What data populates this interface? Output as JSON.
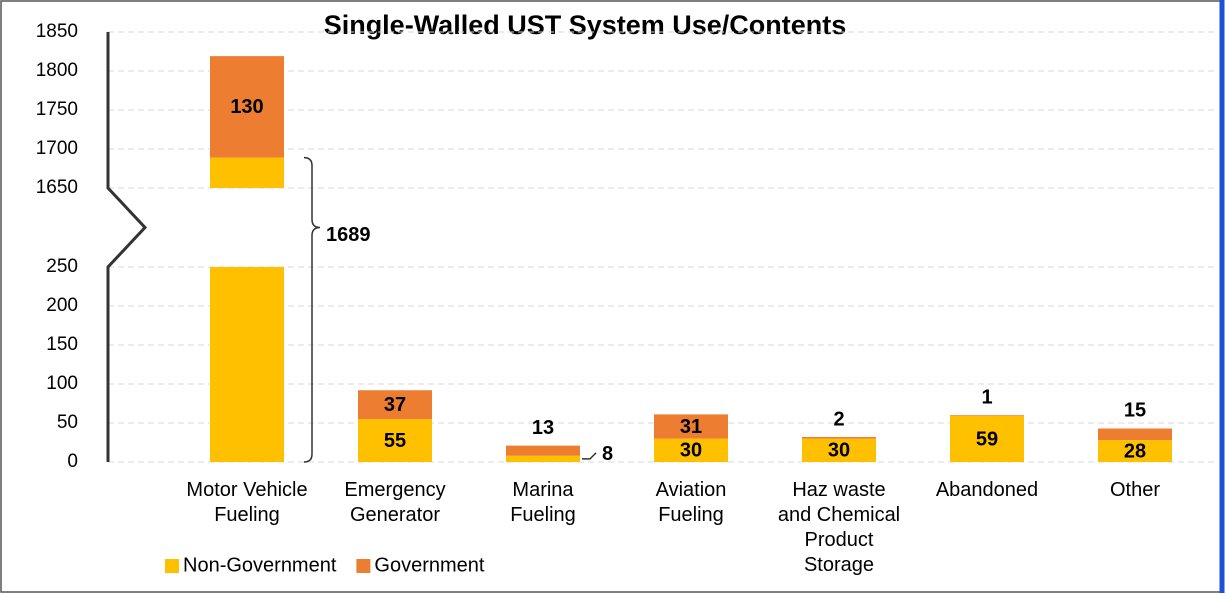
{
  "chart_data": {
    "type": "stacked_bar_broken_axis",
    "title": "Single-Walled UST System Use/Contents",
    "categories": [
      "Motor Vehicle\nFueling",
      "Emergency\nGenerator",
      "Marina\nFueling",
      "Aviation\nFueling",
      "Haz waste\nand Chemical\nProduct\nStorage",
      "Abandoned",
      "Other"
    ],
    "series": [
      {
        "name": "Non-Government",
        "color": "#FFC000",
        "values": [
          1689,
          55,
          8,
          30,
          30,
          59,
          28
        ]
      },
      {
        "name": "Government",
        "color": "#ED7D31",
        "values": [
          130,
          37,
          13,
          31,
          2,
          1,
          15
        ]
      }
    ],
    "ylim": [
      0,
      1850
    ],
    "axis_break": [
      250,
      1650
    ],
    "yticks": [
      0,
      50,
      100,
      150,
      200,
      250,
      1650,
      1700,
      1750,
      1800,
      1850
    ],
    "grid": true,
    "legend": "bottom-left"
  }
}
